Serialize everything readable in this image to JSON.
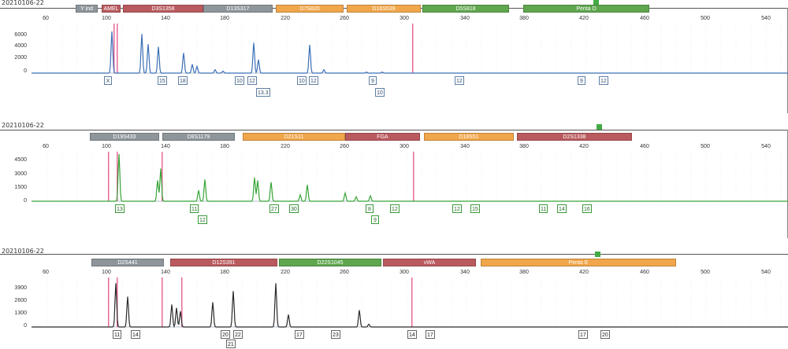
{
  "panels": [
    {
      "title": "20210106-22",
      "color": "#3b6fb6",
      "yticks": [
        "6000",
        "4000",
        "2000",
        "0"
      ],
      "ymax": 7000,
      "loci": [
        {
          "label": "Y ind",
          "color": "gray"
        },
        {
          "label": "AMEL",
          "color": "red"
        },
        {
          "label": "D3S1358",
          "color": "red"
        },
        {
          "label": "D13S317",
          "color": "gray"
        },
        {
          "label": "D7S820",
          "color": "orange"
        },
        {
          "label": "D16S539",
          "color": "orange"
        },
        {
          "label": "D5S818",
          "color": "green"
        },
        {
          "label": "Penta D",
          "color": "green"
        }
      ],
      "alleles": [
        "X",
        "15",
        "18",
        "10",
        "12",
        "13.3",
        "10",
        "12",
        "9",
        "10",
        "12",
        "9",
        "12"
      ],
      "peaks": [
        [
          102,
          6200
        ],
        [
          140,
          5800
        ],
        [
          148,
          4300
        ],
        [
          161,
          3900
        ],
        [
          193,
          3000
        ],
        [
          204,
          1300
        ],
        [
          210,
          1000
        ],
        [
          233,
          500
        ],
        [
          243,
          300
        ],
        [
          282,
          4500
        ],
        [
          288,
          2000
        ],
        [
          353,
          4200
        ],
        [
          371,
          500
        ],
        [
          425,
          150
        ],
        [
          445,
          150
        ]
      ]
    },
    {
      "title": "20210106-22",
      "color": "#36a436",
      "yticks": [
        "4500",
        "3000",
        "1500",
        "0"
      ],
      "ymax": 5200,
      "loci": [
        {
          "label": "D19S433",
          "color": "gray"
        },
        {
          "label": "D8S1179",
          "color": "gray"
        },
        {
          "label": "D21S11",
          "color": "orange"
        },
        {
          "label": "FGA",
          "color": "red"
        },
        {
          "label": "D18S51",
          "color": "orange"
        },
        {
          "label": "D2S1338",
          "color": "red"
        }
      ],
      "alleles": [
        "13",
        "11",
        "12",
        "27",
        "30",
        "8",
        "9",
        "12",
        "12",
        "15",
        "11",
        "14",
        "16"
      ],
      "peaks": [
        [
          111,
          5200
        ],
        [
          160,
          2300
        ],
        [
          164,
          3600
        ],
        [
          212,
          1200
        ],
        [
          220,
          2400
        ],
        [
          283,
          2600
        ],
        [
          287,
          2300
        ],
        [
          304,
          2100
        ],
        [
          341,
          700
        ],
        [
          350,
          1800
        ],
        [
          398,
          900
        ],
        [
          412,
          500
        ],
        [
          430,
          600
        ]
      ]
    },
    {
      "title": "20210106-22",
      "color": "#2a2a2a",
      "yticks": [
        "3900",
        "2600",
        "1300",
        "0"
      ],
      "ymax": 4200,
      "loci": [
        {
          "label": "D2S441",
          "color": "gray"
        },
        {
          "label": "D12S391",
          "color": "red"
        },
        {
          "label": "D22S1045",
          "color": "green"
        },
        {
          "label": "vWA",
          "color": "red"
        },
        {
          "label": "Penta E",
          "color": "orange"
        }
      ],
      "alleles": [
        "11",
        "14",
        "20",
        "21",
        "22",
        "17",
        "23",
        "14",
        "17",
        "17",
        "20"
      ],
      "peaks": [
        [
          107,
          3900
        ],
        [
          122,
          2700
        ],
        [
          178,
          2000
        ],
        [
          184,
          1700
        ],
        [
          189,
          1400
        ],
        [
          230,
          2200
        ],
        [
          256,
          3200
        ],
        [
          310,
          3900
        ],
        [
          326,
          1100
        ],
        [
          416,
          1500
        ],
        [
          428,
          250
        ]
      ]
    }
  ],
  "scale": [
    "60",
    "100",
    "140",
    "180",
    "220",
    "260",
    "300",
    "340",
    "380",
    "420",
    "460",
    "500",
    "540"
  ]
}
